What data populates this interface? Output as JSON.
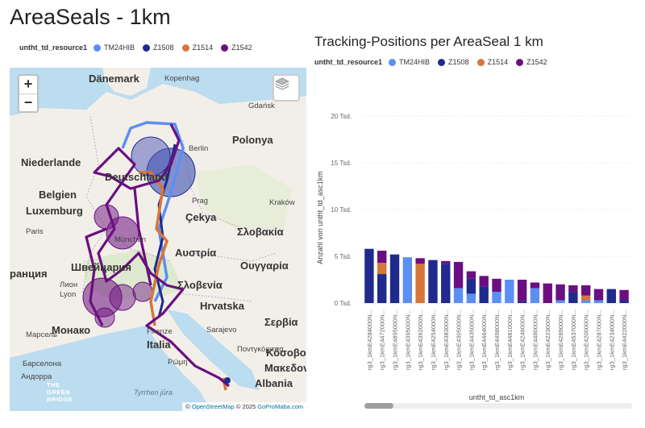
{
  "page_title": "AreaSeals - 1km",
  "colors": {
    "TM24HIB": "#5b8ff4",
    "Z1508": "#1f2a8c",
    "Z1514": "#d6763a",
    "Z1542": "#6b0f80"
  },
  "map_legend": {
    "title": "untht_td_resource1",
    "items": [
      {
        "name": "TM24HIB",
        "color": "#5b8ff4"
      },
      {
        "name": "Z1508",
        "color": "#1f2a8c"
      },
      {
        "name": "Z1514",
        "color": "#d6763a"
      },
      {
        "name": "Z1542",
        "color": "#6b0f80"
      }
    ]
  },
  "map": {
    "zoom_in": "+",
    "zoom_out": "−",
    "labels": {
      "danemark": "Dänemark",
      "kopenhag": "Kopenhag",
      "gdansk": "Gdańsk",
      "polonya": "Polonya",
      "niederlande": "Niederlande",
      "berlin": "Berlin",
      "deutschland": "Deutschland",
      "belgien": "Belgien",
      "luxemburg": "Luxemburg",
      "prag": "Prag",
      "krakow": "Kraków",
      "cekya": "Çekya",
      "slovakia": "Σλοβακία",
      "paris": "Paris",
      "munchen": "München",
      "austria": "Αυστρία",
      "switzerland": "Швейцария",
      "oungaria": "Ουγγαρία",
      "francia": "ранция",
      "lyon": "Лион",
      "lyon2": "Lyon",
      "slovenia": "Σλοβενία",
      "hrvatska": "Hrvatska",
      "monako": "Монако",
      "sarajevo": "Sarajevo",
      "serbia": "Σερβία",
      "marsel": "Марсель",
      "firenze": "Firenze",
      "italia": "Italia",
      "barselona": "Барселона",
      "roma": "Ρώμη",
      "pontgorica": "Ποντγκόριτσα",
      "kosovo": "Κόσοβο",
      "makedonia": "Μακεδονία",
      "andorra": "Андорра",
      "albania": "Albania",
      "tyrrhen": "Tyrrhen jūra"
    },
    "attribution_prefix": "© ",
    "attribution_osm": "OpenStreetMap",
    "attribution_mid": " © 2025 ",
    "attribution_gp": "GoProMaba.com",
    "logo_text": [
      "THE",
      "GREEN",
      "BRIDGE"
    ]
  },
  "chart_legend": {
    "title": "untht_td_resource1",
    "items": [
      {
        "name": "TM24HIB",
        "color": "#5b8ff4"
      },
      {
        "name": "Z1508",
        "color": "#1f2a8c"
      },
      {
        "name": "Z1514",
        "color": "#d6763a"
      },
      {
        "name": "Z1542",
        "color": "#6b0f80"
      }
    ]
  },
  "chart_data": {
    "type": "bar",
    "stacked": true,
    "title": "Tracking-Positions per AreaSeal 1 km",
    "xlabel": "untht_td_asc1km",
    "ylabel": "Anzahl von untht_td_asc1km",
    "ylim": [
      0,
      20000
    ],
    "yticks": [
      0,
      5000,
      10000,
      15000,
      20000
    ],
    "ytick_labels": [
      "0 Tsd.",
      "5 Tsd.",
      "10 Tsd.",
      "15 Tsd.",
      "20 Tsd."
    ],
    "grid": true,
    "legend": "top-left",
    "categories": [
      "rg3_1kmE4284000N...",
      "rg3_1kmE4472000N...",
      "rg3_1kmE4895000N...",
      "rg3_1kmE4395000N...",
      "rg3_1kmE4392000N...",
      "rg3_1kmE4254000N...",
      "rg3_1kmE4383000N...",
      "rg3_1kmE4305000N...",
      "rg3_1kmE4435000N...",
      "rg3_1kmE4464000N...",
      "rg3_1kmE4498000N...",
      "rg3_1kmE4481000N...",
      "rg3_1kmE4246000N...",
      "rg3_1kmE4480000N...",
      "rg3_1kmE4223000N...",
      "rg3_1kmE4289000N...",
      "rg3_1kmE4537000N...",
      "rg3_1kmE4200000N...",
      "rg3_1kmE4287000N...",
      "rg3_1kmE4234000N...",
      "rg3_1kmE4422000N..."
    ],
    "series": [
      {
        "name": "TM24HIB",
        "values": [
          0,
          0,
          0,
          4900,
          0,
          0,
          0,
          1600,
          1000,
          0,
          1200,
          2500,
          0,
          1600,
          0,
          300,
          0,
          300,
          300,
          0,
          0
        ]
      },
      {
        "name": "Z1508",
        "values": [
          5800,
          3100,
          5200,
          0,
          0,
          4600,
          4200,
          0,
          1600,
          1800,
          0,
          0,
          200,
          0,
          0,
          0,
          1200,
          0,
          0,
          1500,
          300
        ]
      },
      {
        "name": "Z1514",
        "values": [
          0,
          1200,
          0,
          0,
          4200,
          0,
          0,
          0,
          0,
          0,
          0,
          0,
          0,
          0,
          0,
          0,
          0,
          500,
          0,
          0,
          0
        ]
      },
      {
        "name": "Z1542",
        "values": [
          0,
          1300,
          0,
          0,
          600,
          0,
          300,
          2800,
          800,
          1100,
          1400,
          0,
          2300,
          600,
          2100,
          1700,
          700,
          1100,
          1200,
          0,
          1100
        ]
      }
    ]
  }
}
